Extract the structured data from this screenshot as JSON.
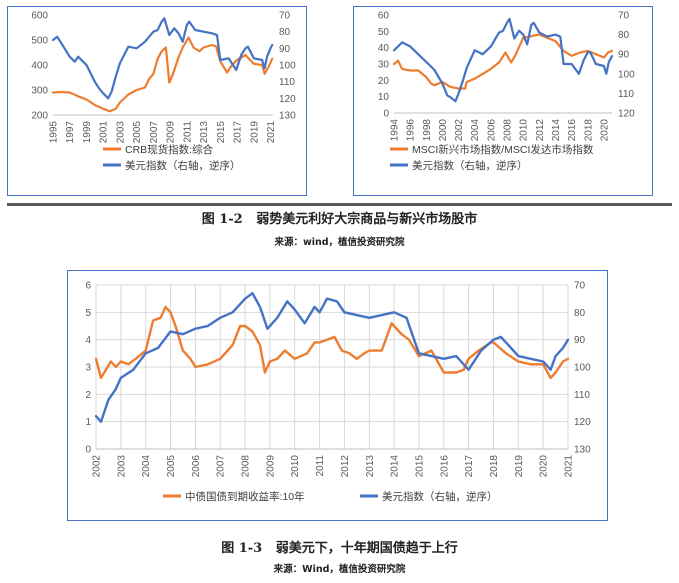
{
  "figure_1_2": {
    "number": "图 1-2",
    "title": "弱势美元利好大宗商品与新兴市场股市",
    "source": "来源：wind，植信投资研究院"
  },
  "figure_1_3": {
    "number": "图 1-3",
    "title": "弱美元下，十年期国债趋于上行",
    "source": "来源：Wind，植信投资研究院"
  },
  "colors": {
    "orange": "#ED7D31",
    "blue": "#4472C4",
    "grid": "#D9D9D9",
    "axis_text": "#595959"
  },
  "chart_data": [
    {
      "id": "crb",
      "type": "line",
      "title": "",
      "xlabel": "",
      "ylabel": "",
      "x_ticks": [
        "1995",
        "1997",
        "1999",
        "2001",
        "2003",
        "2005",
        "2007",
        "2009",
        "2011",
        "2013",
        "2015",
        "2017",
        "2019",
        "2021"
      ],
      "xlim": [
        1995,
        2021.3
      ],
      "ylim": [
        200,
        600
      ],
      "y_ticks": [
        "200",
        "300",
        "400",
        "500",
        "600"
      ],
      "y2lim": [
        130,
        70
      ],
      "y2_ticks": [
        "70",
        "80",
        "90",
        "100",
        "110",
        "120",
        "130"
      ],
      "y2_inverted": true,
      "grid": false,
      "legend_position": "bottom",
      "series": [
        {
          "name": "CRB现货指数:综合",
          "axis": "left",
          "color": "#ED7D31",
          "x": [
            1995,
            1996,
            1997,
            1998,
            1999,
            2000,
            2001,
            2001.8,
            2002.5,
            2003,
            2004,
            2005,
            2006,
            2006.5,
            2007,
            2007.5,
            2008,
            2008.5,
            2008.9,
            2009.3,
            2010,
            2010.5,
            2011.2,
            2011.8,
            2012.5,
            2013,
            2014,
            2014.5,
            2015,
            2015.8,
            2016.3,
            2017,
            2018,
            2019,
            2020,
            2020.3,
            2020.8,
            2021.2
          ],
          "values": [
            290,
            292,
            290,
            275,
            262,
            240,
            225,
            215,
            225,
            250,
            282,
            300,
            310,
            345,
            365,
            425,
            455,
            470,
            330,
            360,
            430,
            470,
            510,
            470,
            455,
            470,
            480,
            475,
            415,
            370,
            395,
            420,
            440,
            405,
            400,
            365,
            395,
            425
          ]
        },
        {
          "name": "美元指数（右轴，逆序）",
          "axis": "right",
          "color": "#4472C4",
          "x": [
            1995,
            1995.5,
            1996,
            1997,
            1997.6,
            1998,
            1999,
            2000,
            2000.5,
            2001,
            2001.6,
            2002,
            2002.5,
            2003,
            2004,
            2005,
            2006,
            2007,
            2007.5,
            2008,
            2008.3,
            2008.9,
            2009.5,
            2010,
            2010.5,
            2011,
            2011.3,
            2012,
            2013,
            2014,
            2014.6,
            2015,
            2016,
            2016.9,
            2017.5,
            2018,
            2018.3,
            2019,
            2020,
            2020.3,
            2020.6,
            2021,
            2021.2
          ],
          "values": [
            85,
            83,
            87,
            95,
            98,
            95,
            100,
            110,
            114,
            117,
            120,
            116,
            107,
            99,
            89,
            90,
            86,
            80,
            79,
            74,
            72,
            82,
            78,
            81,
            86,
            76,
            74,
            79,
            80,
            81,
            82,
            97,
            96,
            103,
            94,
            90,
            89,
            96,
            97,
            102,
            95,
            90,
            88
          ]
        }
      ]
    },
    {
      "id": "msci",
      "type": "line",
      "title": "",
      "xlabel": "",
      "ylabel": "",
      "x_ticks": [
        "1994",
        "1996",
        "1998",
        "2000",
        "2002",
        "2004",
        "2006",
        "2008",
        "2010",
        "2012",
        "2014",
        "2016",
        "2018",
        "2020"
      ],
      "xlim": [
        1994,
        2021
      ],
      "ylim": [
        0,
        60
      ],
      "y_ticks": [
        "0",
        "10",
        "20",
        "30",
        "40",
        "50",
        "60"
      ],
      "y2lim": [
        120,
        70
      ],
      "y2_ticks": [
        "70",
        "80",
        "90",
        "100",
        "110",
        "120"
      ],
      "y2_inverted": true,
      "grid": false,
      "legend_position": "bottom",
      "series": [
        {
          "name": "MSCI新兴市场指数/MSCI发达市场指数",
          "axis": "left",
          "color": "#ED7D31",
          "x": [
            1994,
            1994.5,
            1995,
            1996,
            1997,
            1998,
            1998.6,
            1999,
            2000,
            2001,
            2002,
            2002.8,
            2003,
            2004,
            2005,
            2006,
            2007,
            2007.8,
            2008.5,
            2009,
            2010,
            2011,
            2012,
            2013,
            2014,
            2015,
            2016,
            2017,
            2018,
            2019,
            2020,
            2020.5,
            2021
          ],
          "values": [
            30,
            32,
            27,
            26,
            26,
            22,
            18,
            17,
            19,
            16,
            15,
            15,
            19,
            21,
            24,
            27,
            31,
            37,
            31,
            35,
            46,
            47,
            48,
            46,
            44,
            38,
            35,
            37,
            38,
            36,
            34,
            37,
            38
          ]
        },
        {
          "name": "美元指数（右轴，逆序）",
          "axis": "right",
          "color": "#4472C4",
          "x": [
            1994,
            1994.5,
            1995,
            1996,
            1997,
            1998,
            1999,
            2000,
            2000.6,
            2001,
            2001.6,
            2002,
            2002.5,
            2003,
            2004,
            2005,
            2006,
            2007,
            2007.5,
            2008,
            2008.3,
            2008.9,
            2009.5,
            2010,
            2010.5,
            2011,
            2011.3,
            2012,
            2013,
            2014,
            2014.6,
            2015,
            2016,
            2016.9,
            2017.5,
            2018,
            2018.3,
            2019,
            2020,
            2020.3,
            2020.6,
            2021
          ],
          "values": [
            88,
            86,
            84,
            86,
            90,
            94,
            98,
            105,
            111,
            112,
            114,
            110,
            104,
            97,
            88,
            90,
            86,
            79,
            78,
            74,
            72,
            82,
            78,
            80,
            85,
            75,
            74,
            79,
            81,
            80,
            81,
            95,
            95,
            100,
            93,
            89,
            89,
            95,
            96,
            100,
            94,
            91
          ]
        }
      ]
    },
    {
      "id": "bond",
      "type": "line",
      "title": "",
      "xlabel": "",
      "ylabel": "",
      "x_ticks": [
        "2002",
        "2003",
        "2004",
        "2005",
        "2006",
        "2007",
        "2008",
        "2009",
        "2010",
        "2011",
        "2012",
        "2013",
        "2014",
        "2015",
        "2016",
        "2017",
        "2018",
        "2019",
        "2020",
        "2021"
      ],
      "xlim": [
        2002,
        2021
      ],
      "ylim": [
        0,
        6
      ],
      "y_ticks": [
        "0",
        "1",
        "2",
        "3",
        "4",
        "5",
        "6"
      ],
      "y2lim": [
        130,
        70
      ],
      "y2_ticks": [
        "70",
        "80",
        "90",
        "100",
        "110",
        "120",
        "130"
      ],
      "y2_inverted": true,
      "grid": true,
      "legend_position": "bottom",
      "series": [
        {
          "name": "中债国债到期收益率:10年",
          "axis": "left",
          "color": "#ED7D31",
          "x": [
            2002,
            2002.2,
            2002.4,
            2002.6,
            2002.8,
            2003,
            2003.3,
            2003.6,
            2004,
            2004.3,
            2004.6,
            2004.8,
            2005,
            2005.2,
            2005.5,
            2005.8,
            2006,
            2006.5,
            2007,
            2007.5,
            2007.8,
            2008,
            2008.3,
            2008.6,
            2008.8,
            2009,
            2009.3,
            2009.6,
            2010,
            2010.5,
            2010.8,
            2011,
            2011.3,
            2011.6,
            2011.9,
            2012.2,
            2012.5,
            2012.8,
            2013,
            2013.5,
            2013.9,
            2014,
            2014.3,
            2014.6,
            2015,
            2015.5,
            2016,
            2016.5,
            2016.8,
            2017,
            2017.4,
            2017.9,
            2018,
            2018.5,
            2019,
            2019.5,
            2020,
            2020.3,
            2020.5,
            2020.8,
            2021
          ],
          "values": [
            3.3,
            2.6,
            2.9,
            3.2,
            3.0,
            3.2,
            3.1,
            3.3,
            3.6,
            4.7,
            4.8,
            5.2,
            5.0,
            4.5,
            3.6,
            3.3,
            3.0,
            3.1,
            3.3,
            3.8,
            4.5,
            4.5,
            4.3,
            3.8,
            2.8,
            3.2,
            3.3,
            3.6,
            3.3,
            3.5,
            3.9,
            3.9,
            4.0,
            4.1,
            3.6,
            3.5,
            3.3,
            3.5,
            3.6,
            3.6,
            4.6,
            4.5,
            4.2,
            4.0,
            3.4,
            3.6,
            2.8,
            2.8,
            2.9,
            3.3,
            3.6,
            3.9,
            3.9,
            3.5,
            3.2,
            3.1,
            3.1,
            2.6,
            2.8,
            3.2,
            3.3
          ]
        },
        {
          "name": "美元指数（右轴，逆序）",
          "axis": "right",
          "color": "#4472C4",
          "x": [
            2002,
            2002.2,
            2002.5,
            2002.8,
            2003,
            2003.5,
            2004,
            2004.5,
            2005,
            2005.5,
            2006,
            2006.5,
            2007,
            2007.5,
            2008,
            2008.3,
            2008.6,
            2008.9,
            2009.3,
            2009.7,
            2010,
            2010.4,
            2010.8,
            2011,
            2011.3,
            2011.7,
            2012,
            2012.5,
            2013,
            2013.5,
            2014,
            2014.5,
            2015,
            2015.5,
            2016,
            2016.5,
            2016.9,
            2017,
            2017.5,
            2018,
            2018.3,
            2018.6,
            2019,
            2019.5,
            2020,
            2020.3,
            2020.5,
            2020.8,
            2021
          ],
          "values": [
            118,
            120,
            112,
            108,
            104,
            101,
            95,
            93,
            87,
            88,
            86,
            85,
            82,
            80,
            75,
            73,
            78,
            86,
            82,
            76,
            79,
            84,
            78,
            80,
            75,
            76,
            80,
            81,
            82,
            81,
            80,
            82,
            95,
            96,
            97,
            96,
            100,
            101,
            94,
            90,
            89,
            92,
            96,
            97,
            98,
            101,
            96,
            93,
            90
          ]
        }
      ]
    }
  ]
}
